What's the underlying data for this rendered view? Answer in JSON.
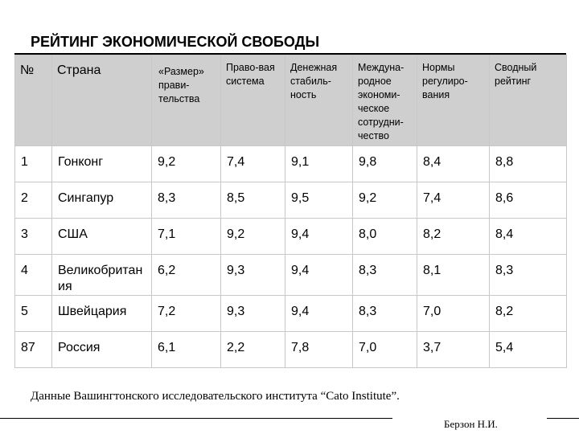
{
  "title": "РЕЙТИНГ ЭКОНОМИЧЕСКОЙ СВОБОДЫ",
  "table": {
    "headers": [
      "№",
      "Страна",
      "«Размер» прави-тельства",
      "Право-вая система",
      "Денежная стабиль-ность",
      "Междуна-родное экономи-ческое сотрудни-чество",
      "Нормы регулиро-вания",
      "Сводный рейтинг"
    ],
    "rows": [
      [
        "1",
        "Гонконг",
        "9,2",
        "7,4",
        "9,1",
        "9,8",
        "8,4",
        "8,8"
      ],
      [
        "2",
        "Сингапур",
        "8,3",
        "8,5",
        "9,5",
        "9,2",
        "7,4",
        "8,6"
      ],
      [
        "3",
        "США",
        "7,1",
        "9,2",
        "9,4",
        "8,0",
        "8,2",
        "8,4"
      ],
      [
        "4",
        "Великобритания",
        "6,2",
        "9,3",
        "9,4",
        "8,3",
        "8,1",
        "8,3"
      ],
      [
        "5",
        "Швейцария",
        "7,2",
        "9,3",
        "9,4",
        "8,3",
        "7,0",
        "8,2"
      ],
      [
        "87",
        "Россия",
        "6,1",
        "2,2",
        "7,8",
        "7,0",
        "3,7",
        "5,4"
      ]
    ]
  },
  "source_note": "Данные Вашингтонского исследовательского института “Cato Institute”.",
  "author": "Берзон Н.И."
}
